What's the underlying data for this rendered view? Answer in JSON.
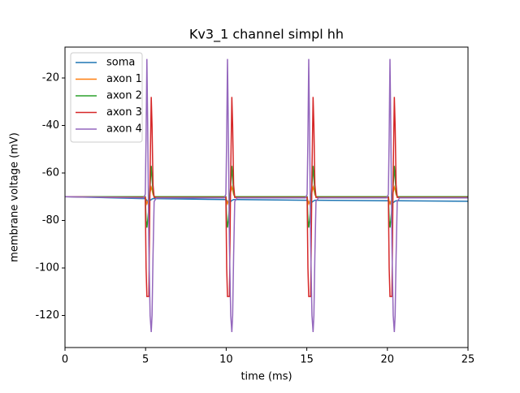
{
  "chart_data": {
    "type": "line",
    "title": "Kv3_1 channel simpl hh",
    "x_label": "time (ms)",
    "y_label": "membrane voltage (mV)",
    "x": [
      0,
      4.88,
      4.98,
      5.03,
      5.08,
      5.13,
      5.2,
      5.28,
      5.35,
      5.4,
      5.46,
      5.53,
      5.68,
      9.88,
      9.98,
      10.03,
      10.08,
      10.13,
      10.2,
      10.28,
      10.35,
      10.4,
      10.46,
      10.53,
      10.68,
      14.92,
      15.02,
      15.07,
      15.12,
      15.17,
      15.24,
      15.32,
      15.39,
      15.44,
      15.5,
      15.57,
      15.72,
      19.96,
      20.06,
      20.11,
      20.16,
      20.21,
      20.28,
      20.36,
      20.43,
      20.48,
      20.54,
      20.61,
      20.76,
      25
    ],
    "series": [
      {
        "name": "soma",
        "color": "#1f77b4",
        "values": [
          -70,
          -70.8,
          -70.8,
          -71.1,
          -71.6,
          -72,
          -72,
          -71.6,
          -71.2,
          -71,
          -70.8,
          -70.8,
          -70.8,
          -71.2,
          -71.2,
          -71.5,
          -72,
          -72.4,
          -72.4,
          -72,
          -71.6,
          -71.4,
          -71.2,
          -71.2,
          -71.2,
          -71.5,
          -71.5,
          -71.8,
          -72.3,
          -72.7,
          -72.7,
          -72.3,
          -71.9,
          -71.7,
          -71.5,
          -71.5,
          -71.5,
          -71.7,
          -71.7,
          -72,
          -72.5,
          -72.9,
          -72.9,
          -72.5,
          -72.1,
          -71.9,
          -71.7,
          -71.7,
          -71.7,
          -71.9
        ]
      },
      {
        "name": "axon 1",
        "color": "#ff7f0e",
        "values": [
          -70,
          -70,
          -70,
          -72,
          -73,
          -72,
          -71,
          -68,
          -66,
          -67,
          -69,
          -70,
          -70,
          -70,
          -70,
          -72,
          -73,
          -72,
          -71,
          -68,
          -66,
          -67,
          -69,
          -70,
          -70,
          -70,
          -70,
          -72,
          -73,
          -72,
          -71,
          -68,
          -66,
          -67,
          -69,
          -70,
          -70,
          -70,
          -70,
          -72,
          -73,
          -72,
          -71,
          -68,
          -66,
          -67,
          -69,
          -70,
          -70,
          -70
        ]
      },
      {
        "name": "axon 2",
        "color": "#2ca02c",
        "values": [
          -70,
          -70,
          -70,
          -80,
          -83,
          -80,
          -75,
          -65,
          -57,
          -62,
          -68,
          -70,
          -70,
          -70,
          -70,
          -80,
          -83,
          -80,
          -75,
          -65,
          -57,
          -62,
          -68,
          -70,
          -70,
          -70,
          -70,
          -80,
          -83,
          -80,
          -75,
          -65,
          -57,
          -62,
          -68,
          -70,
          -70,
          -70,
          -70,
          -80,
          -83,
          -80,
          -75,
          -65,
          -57,
          -62,
          -68,
          -70,
          -70,
          -70
        ]
      },
      {
        "name": "axon 3",
        "color": "#d62728",
        "values": [
          -70,
          -70.3,
          -70.3,
          -100,
          -112,
          -112,
          -112,
          -60,
          -28,
          -40,
          -65,
          -70.3,
          -70.3,
          -70.3,
          -70.3,
          -100,
          -112,
          -112,
          -112,
          -60,
          -28,
          -40,
          -65,
          -70.3,
          -70.3,
          -70.3,
          -70.3,
          -100,
          -112,
          -112,
          -112,
          -60,
          -28,
          -40,
          -65,
          -70.3,
          -70.3,
          -70.3,
          -70.3,
          -100,
          -112,
          -112,
          -112,
          -60,
          -28,
          -40,
          -65,
          -70.3,
          -70.3,
          -70.3
        ]
      },
      {
        "name": "axon 4",
        "color": "#9467bd",
        "values": [
          -70,
          -70.5,
          -69,
          -45,
          -12,
          -40,
          -90,
          -120,
          -127,
          -120,
          -95,
          -72,
          -70.5,
          -70.5,
          -69,
          -45,
          -12,
          -40,
          -90,
          -120,
          -127,
          -120,
          -95,
          -72,
          -70.5,
          -70.5,
          -69,
          -45,
          -12,
          -40,
          -90,
          -120,
          -127,
          -120,
          -95,
          -72,
          -70.5,
          -70.5,
          -69,
          -45,
          -12,
          -40,
          -90,
          -120,
          -127,
          -120,
          -95,
          -72,
          -70.5,
          -70.5
        ]
      }
    ],
    "xlim": [
      0,
      25
    ],
    "ylim": [
      -133.5,
      -7
    ],
    "xticks": [
      0,
      5,
      10,
      15,
      20,
      25
    ],
    "yticks": [
      -120,
      -100,
      -80,
      -60,
      -40,
      -20
    ],
    "legend": "upper left"
  }
}
